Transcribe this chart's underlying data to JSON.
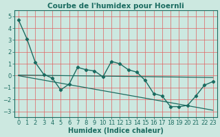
{
  "title": "Courbe de l'humidex pour Hoernli",
  "xlabel": "Humidex (Indice chaleur)",
  "bg_color": "#cce8e0",
  "line_color": "#1a6b60",
  "grid_color": "#e06060",
  "xlim": [
    -0.5,
    23.5
  ],
  "ylim": [
    -3.5,
    5.5
  ],
  "yticks": [
    -3,
    -2,
    -1,
    0,
    1,
    2,
    3,
    4,
    5
  ],
  "xticks": [
    0,
    1,
    2,
    3,
    4,
    5,
    6,
    7,
    8,
    9,
    10,
    11,
    12,
    13,
    14,
    15,
    16,
    17,
    18,
    19,
    20,
    21,
    22,
    23
  ],
  "series1_x": [
    0,
    1,
    2,
    3,
    4,
    5,
    6,
    7,
    8,
    9,
    10,
    11,
    12,
    13,
    14,
    15,
    16,
    17,
    18,
    19,
    20,
    21,
    22,
    23
  ],
  "series1_y": [
    4.7,
    3.1,
    1.1,
    0.1,
    -0.2,
    -1.2,
    -0.7,
    0.7,
    0.5,
    0.4,
    -0.1,
    1.2,
    1.0,
    0.5,
    0.3,
    -0.4,
    -1.5,
    -1.7,
    -2.6,
    -2.6,
    -2.5,
    -1.7,
    -0.8,
    -0.5
  ],
  "trend1_x": [
    0,
    23
  ],
  "trend1_y": [
    0.05,
    -0.15
  ],
  "trend2_x": [
    0,
    23
  ],
  "trend2_y": [
    0.0,
    -2.9
  ],
  "title_fontsize": 7.5,
  "axis_fontsize": 7,
  "tick_fontsize": 6
}
